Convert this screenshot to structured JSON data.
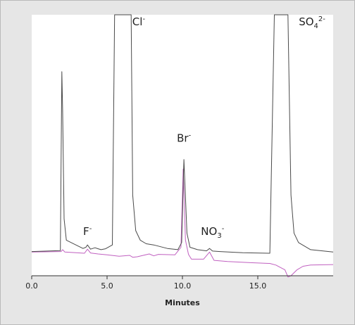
{
  "chart_data": {
    "type": "line",
    "title": "",
    "xlabel": "Minutes",
    "ylabel": "",
    "xlim": [
      0,
      20
    ],
    "ylim": [
      -0.1,
      1.0
    ],
    "grid": false,
    "x_ticks": [
      {
        "value": 0,
        "label": "0.0"
      },
      {
        "value": 5,
        "label": "5.0"
      },
      {
        "value": 10,
        "label": "10.0"
      },
      {
        "value": 15,
        "label": "15.0"
      }
    ],
    "colors": {
      "series_1": "#4a4a4a",
      "series_2": "#c060c0",
      "plot_bg": "#ffffff",
      "axis": "#333333"
    },
    "series": [
      {
        "x": [
          0,
          1.9,
          2.0,
          2.05,
          2.15,
          2.3,
          3.4,
          3.6,
          3.7,
          3.9,
          4.2,
          4.4,
          4.6,
          4.9,
          5.35,
          5.5,
          6.6,
          6.7,
          6.9,
          7.2,
          7.6,
          8.1,
          9.0,
          9.7,
          9.95,
          10.1,
          10.3,
          10.5,
          11.0,
          11.6,
          11.8,
          12.0,
          12.5,
          14.0,
          15.8,
          16.1,
          17.0,
          17.2,
          17.4,
          17.7,
          18.5,
          20.0
        ],
        "values": [
          0.002,
          0.006,
          0.76,
          0.6,
          0.14,
          0.05,
          0.015,
          0.02,
          0.03,
          0.012,
          0.018,
          0.014,
          0.01,
          0.014,
          0.03,
          1.0,
          1.0,
          0.24,
          0.09,
          0.05,
          0.035,
          0.03,
          0.015,
          0.01,
          0.04,
          0.39,
          0.08,
          0.02,
          0.01,
          0.005,
          0.015,
          0.004,
          0.002,
          -0.003,
          -0.005,
          1.0,
          1.0,
          0.24,
          0.08,
          0.04,
          0.01,
          0.0
        ]
      },
      {
        "x": [
          0,
          1.95,
          2.05,
          2.2,
          3.5,
          3.7,
          3.9,
          4.4,
          5.0,
          5.8,
          6.5,
          6.7,
          7.0,
          7.8,
          8.1,
          8.4,
          9.5,
          9.9,
          10.05,
          10.2,
          10.4,
          10.6,
          11.4,
          11.8,
          12.1,
          13.0,
          14.5,
          15.8,
          16.2,
          16.8,
          17.0,
          17.2,
          17.6,
          18.0,
          18.5,
          20.0
        ],
        "values": [
          0.0,
          0.002,
          0.01,
          0.0,
          -0.005,
          0.012,
          -0.004,
          -0.008,
          -0.012,
          -0.018,
          -0.014,
          -0.022,
          -0.02,
          -0.008,
          -0.016,
          -0.01,
          -0.012,
          0.02,
          0.35,
          0.05,
          -0.01,
          -0.03,
          -0.03,
          0.0,
          -0.035,
          -0.04,
          -0.045,
          -0.048,
          -0.055,
          -0.075,
          -0.105,
          -0.1,
          -0.075,
          -0.06,
          -0.055,
          -0.053
        ]
      }
    ],
    "annotations": [
      {
        "base": "F",
        "sub": "",
        "sup": "-",
        "x": 3.7,
        "y": 0.072
      },
      {
        "base": "Cl",
        "sub": "",
        "sup": "-",
        "x": 7.1,
        "y": 0.955
      },
      {
        "base": "Br",
        "sub": "",
        "sup": "-",
        "x": 10.1,
        "y": 0.465
      },
      {
        "base": "NO",
        "sub": "3",
        "sup": "-",
        "x": 12.0,
        "y": 0.072
      },
      {
        "base": "SO",
        "sub": "4",
        "sup": "2-",
        "x": 18.6,
        "y": 0.955
      }
    ]
  }
}
